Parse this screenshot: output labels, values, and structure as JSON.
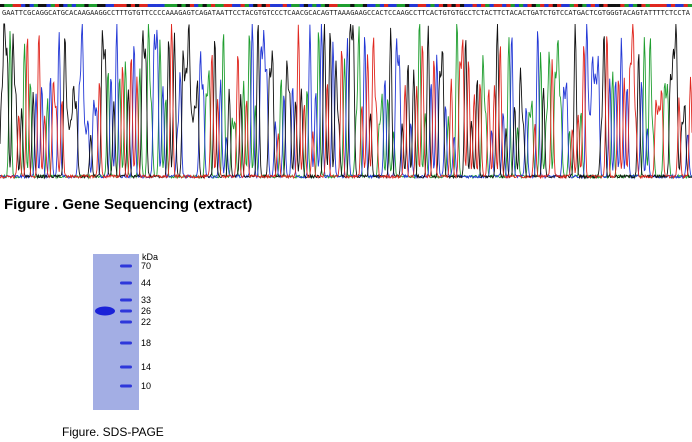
{
  "figure1": {
    "sequence": "GAATTCGCAGGCATGCACAAGAAGGCCTTTGTGTTCCCCAAAGAGTCAGATAATTCCTACGTGTCCCTCAACGCACAGTTAAAGAAGCCACTCCAAGCCTTCACTGTGTGCCTCTACTTCTACACTGATCTGTCCATGACTCGTGGGTACAGTATTTTCTCCTA",
    "caption": "Figure . Gene Sequencing (extract)",
    "trace_colors": {
      "A": "#1f9e2f",
      "C": "#2338d6",
      "G": "#111111",
      "T": "#e0271f"
    }
  },
  "figure2": {
    "unit": "kDa",
    "ladder": [
      "70",
      "44",
      "33",
      "26",
      "22",
      "18",
      "14",
      "10"
    ],
    "sample_band_kda": 26,
    "caption": "Figure. SDS-PAGE",
    "gel_color": "#a3aee4",
    "band_color": "#1a22d8"
  }
}
